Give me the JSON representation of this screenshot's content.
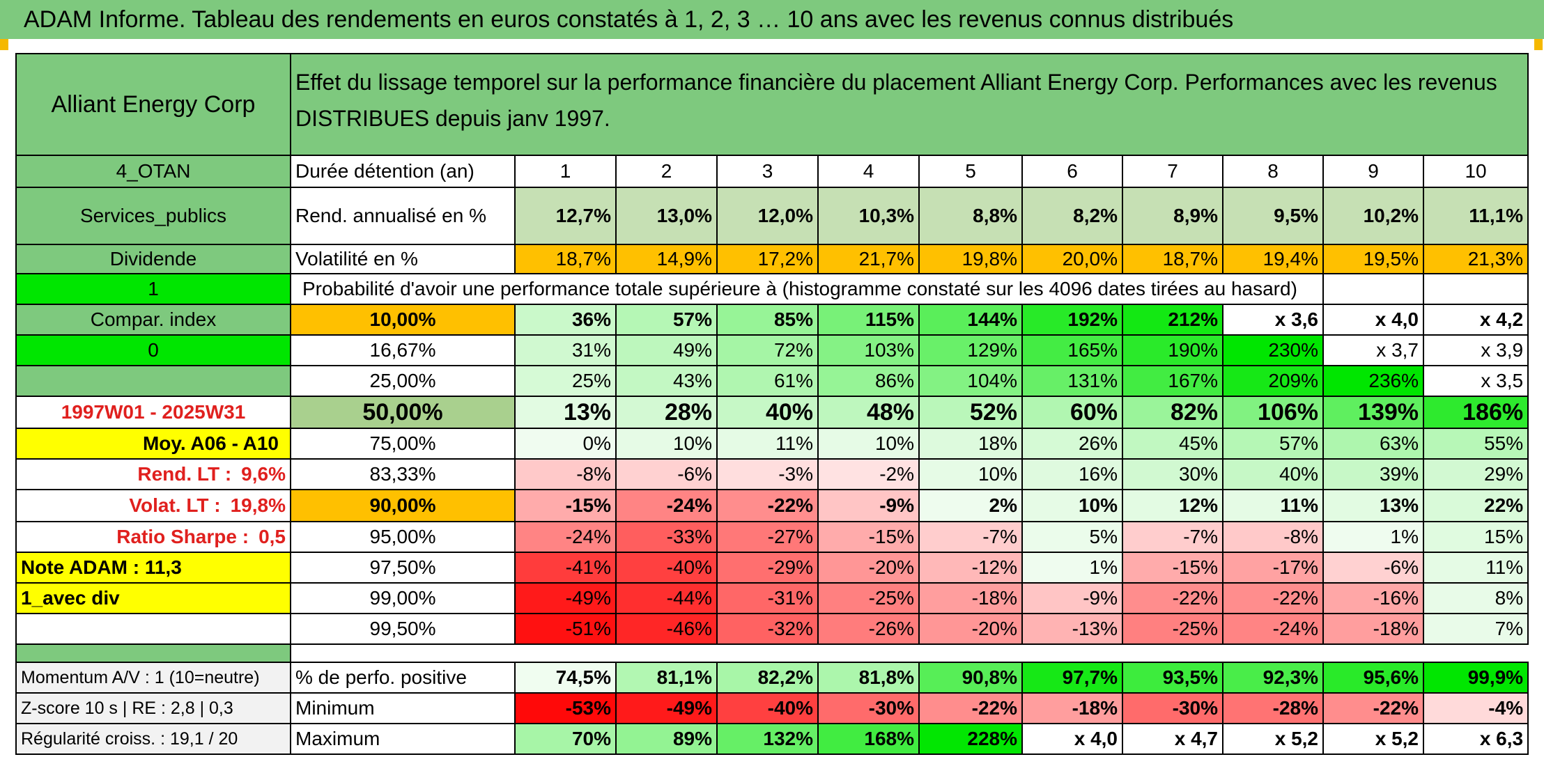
{
  "title": "ADAM Informe. Tableau des rendements en euros constatés à 1, 2, 3 … 10 ans avec les revenus connus distribués",
  "header": {
    "company": "Alliant Energy Corp",
    "description": "Effet du lissage temporel sur la performance financière du placement Alliant Energy Corp. Performances avec les revenus DISTRIBUES depuis janv 1997."
  },
  "left_labels": {
    "r1": "4_OTAN",
    "r2": "Services_publics",
    "r3": "Dividende",
    "r4": "1",
    "r5": "Compar. index",
    "r6": "0",
    "r7": "",
    "r8": "1997W01 - 2025W31",
    "r9": "Moy. A06 - A10",
    "r10_label": "Rend. LT :",
    "r10_value": "9,6%",
    "r11_label": "Volat. LT :",
    "r11_value": "19,8%",
    "r12_label": "Ratio Sharpe :",
    "r12_value": "0,5",
    "r13": "Note ADAM : 11,3",
    "r14": "1_avec div",
    "r15": ""
  },
  "row_labels": {
    "duration": "Durée détention (an)",
    "rend": "Rend. annualisé en %",
    "vol": "Volatilité en %",
    "prob": "Probabilité d'avoir une performance totale supérieure à (histogramme constaté sur les 4096 dates tirées au hasard)"
  },
  "years": [
    "1",
    "2",
    "3",
    "4",
    "5",
    "6",
    "7",
    "8",
    "9",
    "10"
  ],
  "rend": [
    "12,7%",
    "13,0%",
    "12,0%",
    "10,3%",
    "8,8%",
    "8,2%",
    "8,9%",
    "9,5%",
    "10,2%",
    "11,1%"
  ],
  "vol": [
    "18,7%",
    "14,9%",
    "17,2%",
    "21,7%",
    "19,8%",
    "20,0%",
    "18,7%",
    "19,4%",
    "19,5%",
    "21,3%"
  ],
  "prob_rows": [
    {
      "pct": "10,00%",
      "v": [
        "36%",
        "57%",
        "85%",
        "115%",
        "144%",
        "192%",
        "212%",
        "x 3,6",
        "x 4,0",
        "x 4,2"
      ]
    },
    {
      "pct": "16,67%",
      "v": [
        "31%",
        "49%",
        "72%",
        "103%",
        "129%",
        "165%",
        "190%",
        "230%",
        "x 3,7",
        "x 3,9"
      ]
    },
    {
      "pct": "25,00%",
      "v": [
        "25%",
        "43%",
        "61%",
        "86%",
        "104%",
        "131%",
        "167%",
        "209%",
        "236%",
        "x 3,5"
      ]
    },
    {
      "pct": "50,00%",
      "v": [
        "13%",
        "28%",
        "40%",
        "48%",
        "52%",
        "60%",
        "82%",
        "106%",
        "139%",
        "186%"
      ]
    },
    {
      "pct": "75,00%",
      "v": [
        "0%",
        "10%",
        "11%",
        "10%",
        "18%",
        "26%",
        "45%",
        "57%",
        "63%",
        "55%"
      ]
    },
    {
      "pct": "83,33%",
      "v": [
        "-8%",
        "-6%",
        "-3%",
        "-2%",
        "10%",
        "16%",
        "30%",
        "40%",
        "39%",
        "29%"
      ]
    },
    {
      "pct": "90,00%",
      "v": [
        "-15%",
        "-24%",
        "-22%",
        "-9%",
        "2%",
        "10%",
        "12%",
        "11%",
        "13%",
        "22%"
      ]
    },
    {
      "pct": "95,00%",
      "v": [
        "-24%",
        "-33%",
        "-27%",
        "-15%",
        "-7%",
        "5%",
        "-7%",
        "-8%",
        "1%",
        "15%"
      ]
    },
    {
      "pct": "97,50%",
      "v": [
        "-41%",
        "-40%",
        "-29%",
        "-20%",
        "-12%",
        "1%",
        "-15%",
        "-17%",
        "-6%",
        "11%"
      ]
    },
    {
      "pct": "99,00%",
      "v": [
        "-49%",
        "-44%",
        "-31%",
        "-25%",
        "-18%",
        "-9%",
        "-22%",
        "-22%",
        "-16%",
        "8%"
      ]
    },
    {
      "pct": "99,50%",
      "v": [
        "-51%",
        "-46%",
        "-32%",
        "-26%",
        "-20%",
        "-13%",
        "-25%",
        "-24%",
        "-18%",
        "7%"
      ]
    }
  ],
  "bottom": {
    "momentum": "Momentum A/V : 1 (10=neutre)",
    "zscore": "Z-score 10 s | RE : 2,8 | 0,3",
    "regularite": "Régularité croiss. : 19,1 / 20",
    "positive_label": "% de perfo. positive",
    "positive": [
      "74,5%",
      "81,1%",
      "82,2%",
      "81,8%",
      "90,8%",
      "97,7%",
      "93,5%",
      "92,3%",
      "95,6%",
      "99,9%"
    ],
    "min_label": "Minimum",
    "min": [
      "-53%",
      "-49%",
      "-40%",
      "-30%",
      "-22%",
      "-18%",
      "-30%",
      "-28%",
      "-22%",
      "-4%"
    ],
    "max_label": "Maximum",
    "max": [
      "70%",
      "89%",
      "132%",
      "168%",
      "228%",
      "x 4,0",
      "x 4,7",
      "x 5,2",
      "x 5,2",
      "x 6,3"
    ]
  },
  "colors": {
    "header_green": "#7ec97e",
    "orange": "#ffc000",
    "bright_green": "#00e600",
    "yellow": "#ffff00",
    "red_text": "#e0201e"
  }
}
